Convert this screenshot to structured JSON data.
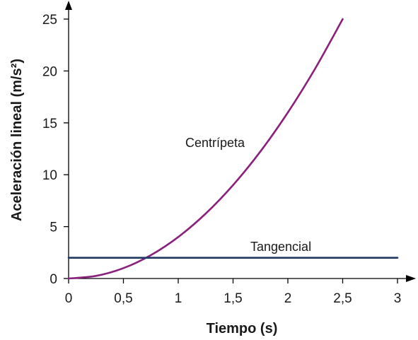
{
  "chart_data": {
    "type": "line",
    "xlabel": "Tiempo (s)",
    "ylabel": "Aceleración lineal (m/s²)",
    "xlim": [
      0,
      3
    ],
    "ylim": [
      0,
      25
    ],
    "x_ticks": [
      0,
      0.5,
      1,
      1.5,
      2,
      2.5,
      3
    ],
    "x_tick_labels": [
      "0",
      "0,5",
      "1",
      "1,5",
      "2",
      "2,5",
      "3"
    ],
    "y_ticks": [
      0,
      5,
      10,
      15,
      20,
      25
    ],
    "y_tick_labels": [
      "0",
      "5",
      "10",
      "15",
      "20",
      "25"
    ],
    "grid": false,
    "series": [
      {
        "name": "Centrípeta",
        "color": "#8b1f7e",
        "x": [
          0,
          0.25,
          0.5,
          0.75,
          1,
          1.25,
          1.5,
          1.75,
          2,
          2.25,
          2.5
        ],
        "y": [
          0,
          0.25,
          1.0,
          2.25,
          4.0,
          6.25,
          9.0,
          12.25,
          16.0,
          20.25,
          25.0
        ]
      },
      {
        "name": "Tangencial",
        "color": "#1f3864",
        "x": [
          0,
          3
        ],
        "y": [
          2,
          2
        ]
      }
    ]
  }
}
